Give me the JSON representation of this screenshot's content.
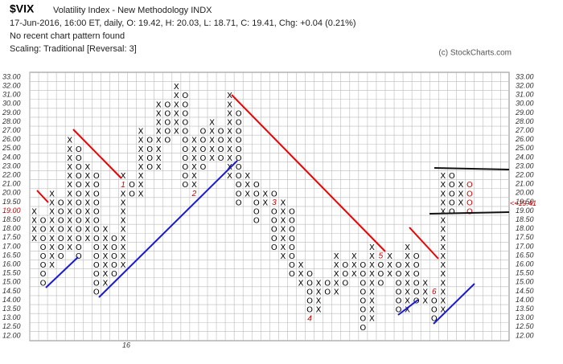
{
  "chart_data": {
    "type": "point-and-figure",
    "symbol": "$VIX",
    "title": "Volatility Index - New Methodology  INDX",
    "subtitle": "17-Jun-2016, 16:00 ET, daily, O: 19.42, H: 20.03, L: 18.71, C: 19.41, Chg: +0.04 (0.21%)",
    "pattern_note": "No recent chart pattern found",
    "scaling_note": "Scaling: Traditional [Reversal: 3]",
    "credit": "(c) StockCharts.com",
    "x_label": "16",
    "last": {
      "value": 19.41,
      "label": "<<19.41"
    },
    "current_tick_color": "#cc0000",
    "box_color": "#000000",
    "yticks": [
      {
        "value": 33,
        "label": "33.00"
      },
      {
        "value": 32,
        "label": "32.00"
      },
      {
        "value": 31,
        "label": "31.00"
      },
      {
        "value": 30,
        "label": "30.00"
      },
      {
        "value": 29,
        "label": "29.00"
      },
      {
        "value": 28,
        "label": "28.00"
      },
      {
        "value": 27,
        "label": "27.00"
      },
      {
        "value": 26,
        "label": "26.00"
      },
      {
        "value": 25,
        "label": "25.00"
      },
      {
        "value": 24,
        "label": "24.00"
      },
      {
        "value": 23,
        "label": "23.00"
      },
      {
        "value": 22,
        "label": "22.00"
      },
      {
        "value": 21,
        "label": "21.00"
      },
      {
        "value": 20,
        "label": "20.00"
      },
      {
        "value": 19.5,
        "label": "19.50"
      },
      {
        "value": 19,
        "label": "19.00"
      },
      {
        "value": 18.5,
        "label": "18.50"
      },
      {
        "value": 18,
        "label": "18.00"
      },
      {
        "value": 17.5,
        "label": "17.50"
      },
      {
        "value": 17,
        "label": "17.00"
      },
      {
        "value": 16.5,
        "label": "16.50"
      },
      {
        "value": 16,
        "label": "16.00"
      },
      {
        "value": 15.5,
        "label": "15.50"
      },
      {
        "value": 15,
        "label": "15.00"
      },
      {
        "value": 14.5,
        "label": "14.50"
      },
      {
        "value": 14,
        "label": "14.00"
      },
      {
        "value": 13.5,
        "label": "13.50"
      },
      {
        "value": 13,
        "label": "13.00"
      },
      {
        "value": 12.5,
        "label": "12.50"
      },
      {
        "value": 12,
        "label": "12.00"
      }
    ],
    "columns": [
      {
        "box": "X",
        "low": 17.5,
        "high": 19
      },
      {
        "box": "O",
        "low": 15,
        "high": 18.5
      },
      {
        "box": "X",
        "low": 16,
        "high": 20
      },
      {
        "box": "O",
        "low": 16.5,
        "high": 19.5
      },
      {
        "box": "X",
        "low": 17,
        "high": 26
      },
      {
        "box": "O",
        "low": 16.5,
        "high": 25
      },
      {
        "box": "X",
        "low": 17.5,
        "high": 23
      },
      {
        "box": "O",
        "low": 14.5,
        "high": 22
      },
      {
        "box": "X",
        "low": 15,
        "high": 18
      },
      {
        "box": "O",
        "low": 15.5,
        "high": 17.5
      },
      {
        "box": "X",
        "low": 16,
        "high": 22,
        "marker": "1",
        "marker_at": 21
      },
      {
        "box": "O",
        "low": 20,
        "high": 21
      },
      {
        "box": "X",
        "low": 20,
        "high": 27
      },
      {
        "box": "O",
        "low": 23,
        "high": 26
      },
      {
        "box": "X",
        "low": 23,
        "high": 30
      },
      {
        "box": "O",
        "low": 26,
        "high": 30
      },
      {
        "box": "X",
        "low": 27,
        "high": 32
      },
      {
        "box": "O",
        "low": 21,
        "high": 31
      },
      {
        "box": "X",
        "low": 20,
        "high": 26,
        "marker": "2",
        "marker_at": 20
      },
      {
        "box": "O",
        "low": 23,
        "high": 27
      },
      {
        "box": "X",
        "low": 24,
        "high": 28
      },
      {
        "box": "O",
        "low": 24,
        "high": 27
      },
      {
        "box": "X",
        "low": 22,
        "high": 31
      },
      {
        "box": "O",
        "low": 19.5,
        "high": 29
      },
      {
        "box": "X",
        "low": 20,
        "high": 22
      },
      {
        "box": "O",
        "low": 18.5,
        "high": 21
      },
      {
        "box": "X",
        "low": 19.5,
        "high": 20
      },
      {
        "box": "O",
        "low": 17,
        "high": 20,
        "marker": "3",
        "marker_at": 19.5
      },
      {
        "box": "X",
        "low": 16.5,
        "high": 19.5
      },
      {
        "box": "O",
        "low": 15.5,
        "high": 19
      },
      {
        "box": "X",
        "low": 15,
        "high": 16
      },
      {
        "box": "O",
        "low": 13.5,
        "high": 15.5,
        "marker": "4",
        "marker_at": 13
      },
      {
        "box": "X",
        "low": 13.5,
        "high": 15
      },
      {
        "box": "O",
        "low": 14.5,
        "high": 15
      },
      {
        "box": "X",
        "low": 14.5,
        "high": 16.5
      },
      {
        "box": "O",
        "low": 15,
        "high": 16
      },
      {
        "box": "X",
        "low": 15.5,
        "high": 16.5
      },
      {
        "box": "O",
        "low": 12.5,
        "high": 16
      },
      {
        "box": "X",
        "low": 13,
        "high": 17
      },
      {
        "box": "O",
        "low": 15,
        "high": 16.5,
        "marker": "5",
        "marker_at": 16.5
      },
      {
        "box": "X",
        "low": 15.5,
        "high": 16.5
      },
      {
        "box": "O",
        "low": 13.5,
        "high": 16
      },
      {
        "box": "X",
        "low": 13.5,
        "high": 17
      },
      {
        "box": "O",
        "low": 14,
        "high": 16.5
      },
      {
        "box": "X",
        "low": 14,
        "high": 15
      },
      {
        "box": "O",
        "low": 13,
        "high": 14.5,
        "marker": "6",
        "marker_at": 14.5
      },
      {
        "box": "X",
        "low": 13.5,
        "high": 22
      },
      {
        "box": "O",
        "low": 19,
        "high": 22
      },
      {
        "box": "X",
        "low": 19.5,
        "high": 21
      },
      {
        "box": "O",
        "low": 19,
        "high": 21,
        "color": "#cc0000"
      }
    ]
  }
}
